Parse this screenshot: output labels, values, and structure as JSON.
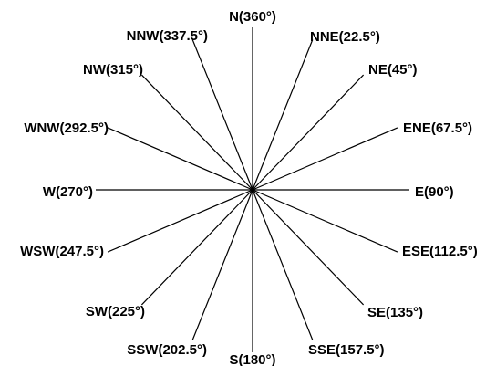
{
  "diagram": {
    "type": "compass-rose",
    "colors": {
      "line": "#000000",
      "text": "#000000",
      "background": "#ffffff"
    },
    "directions": [
      {
        "key": "N",
        "angle": 0,
        "label": "N(360°)"
      },
      {
        "key": "NNE",
        "angle": 22.5,
        "label": "NNE(22.5°)"
      },
      {
        "key": "NE",
        "angle": 45,
        "label": "NE(45°)"
      },
      {
        "key": "ENE",
        "angle": 67.5,
        "label": "ENE(67.5°)"
      },
      {
        "key": "E",
        "angle": 90,
        "label": "E(90°)"
      },
      {
        "key": "ESE",
        "angle": 112.5,
        "label": "ESE(112.5°)"
      },
      {
        "key": "SE",
        "angle": 135,
        "label": "SE(135°)"
      },
      {
        "key": "SSE",
        "angle": 157.5,
        "label": "SSE(157.5°)"
      },
      {
        "key": "S",
        "angle": 180,
        "label": "S(180°)"
      },
      {
        "key": "SSW",
        "angle": 202.5,
        "label": "SSW(202.5°)"
      },
      {
        "key": "SW",
        "angle": 225,
        "label": "SW(225°)"
      },
      {
        "key": "WSW",
        "angle": 247.5,
        "label": "WSW(247.5°)"
      },
      {
        "key": "W",
        "angle": 270,
        "label": "W(270°)"
      },
      {
        "key": "WNW",
        "angle": 292.5,
        "label": "WNW(292.5°)"
      },
      {
        "key": "NW",
        "angle": 315,
        "label": "NW(315°)"
      },
      {
        "key": "NNW",
        "angle": 337.5,
        "label": "NNW(337.5°)"
      }
    ]
  }
}
